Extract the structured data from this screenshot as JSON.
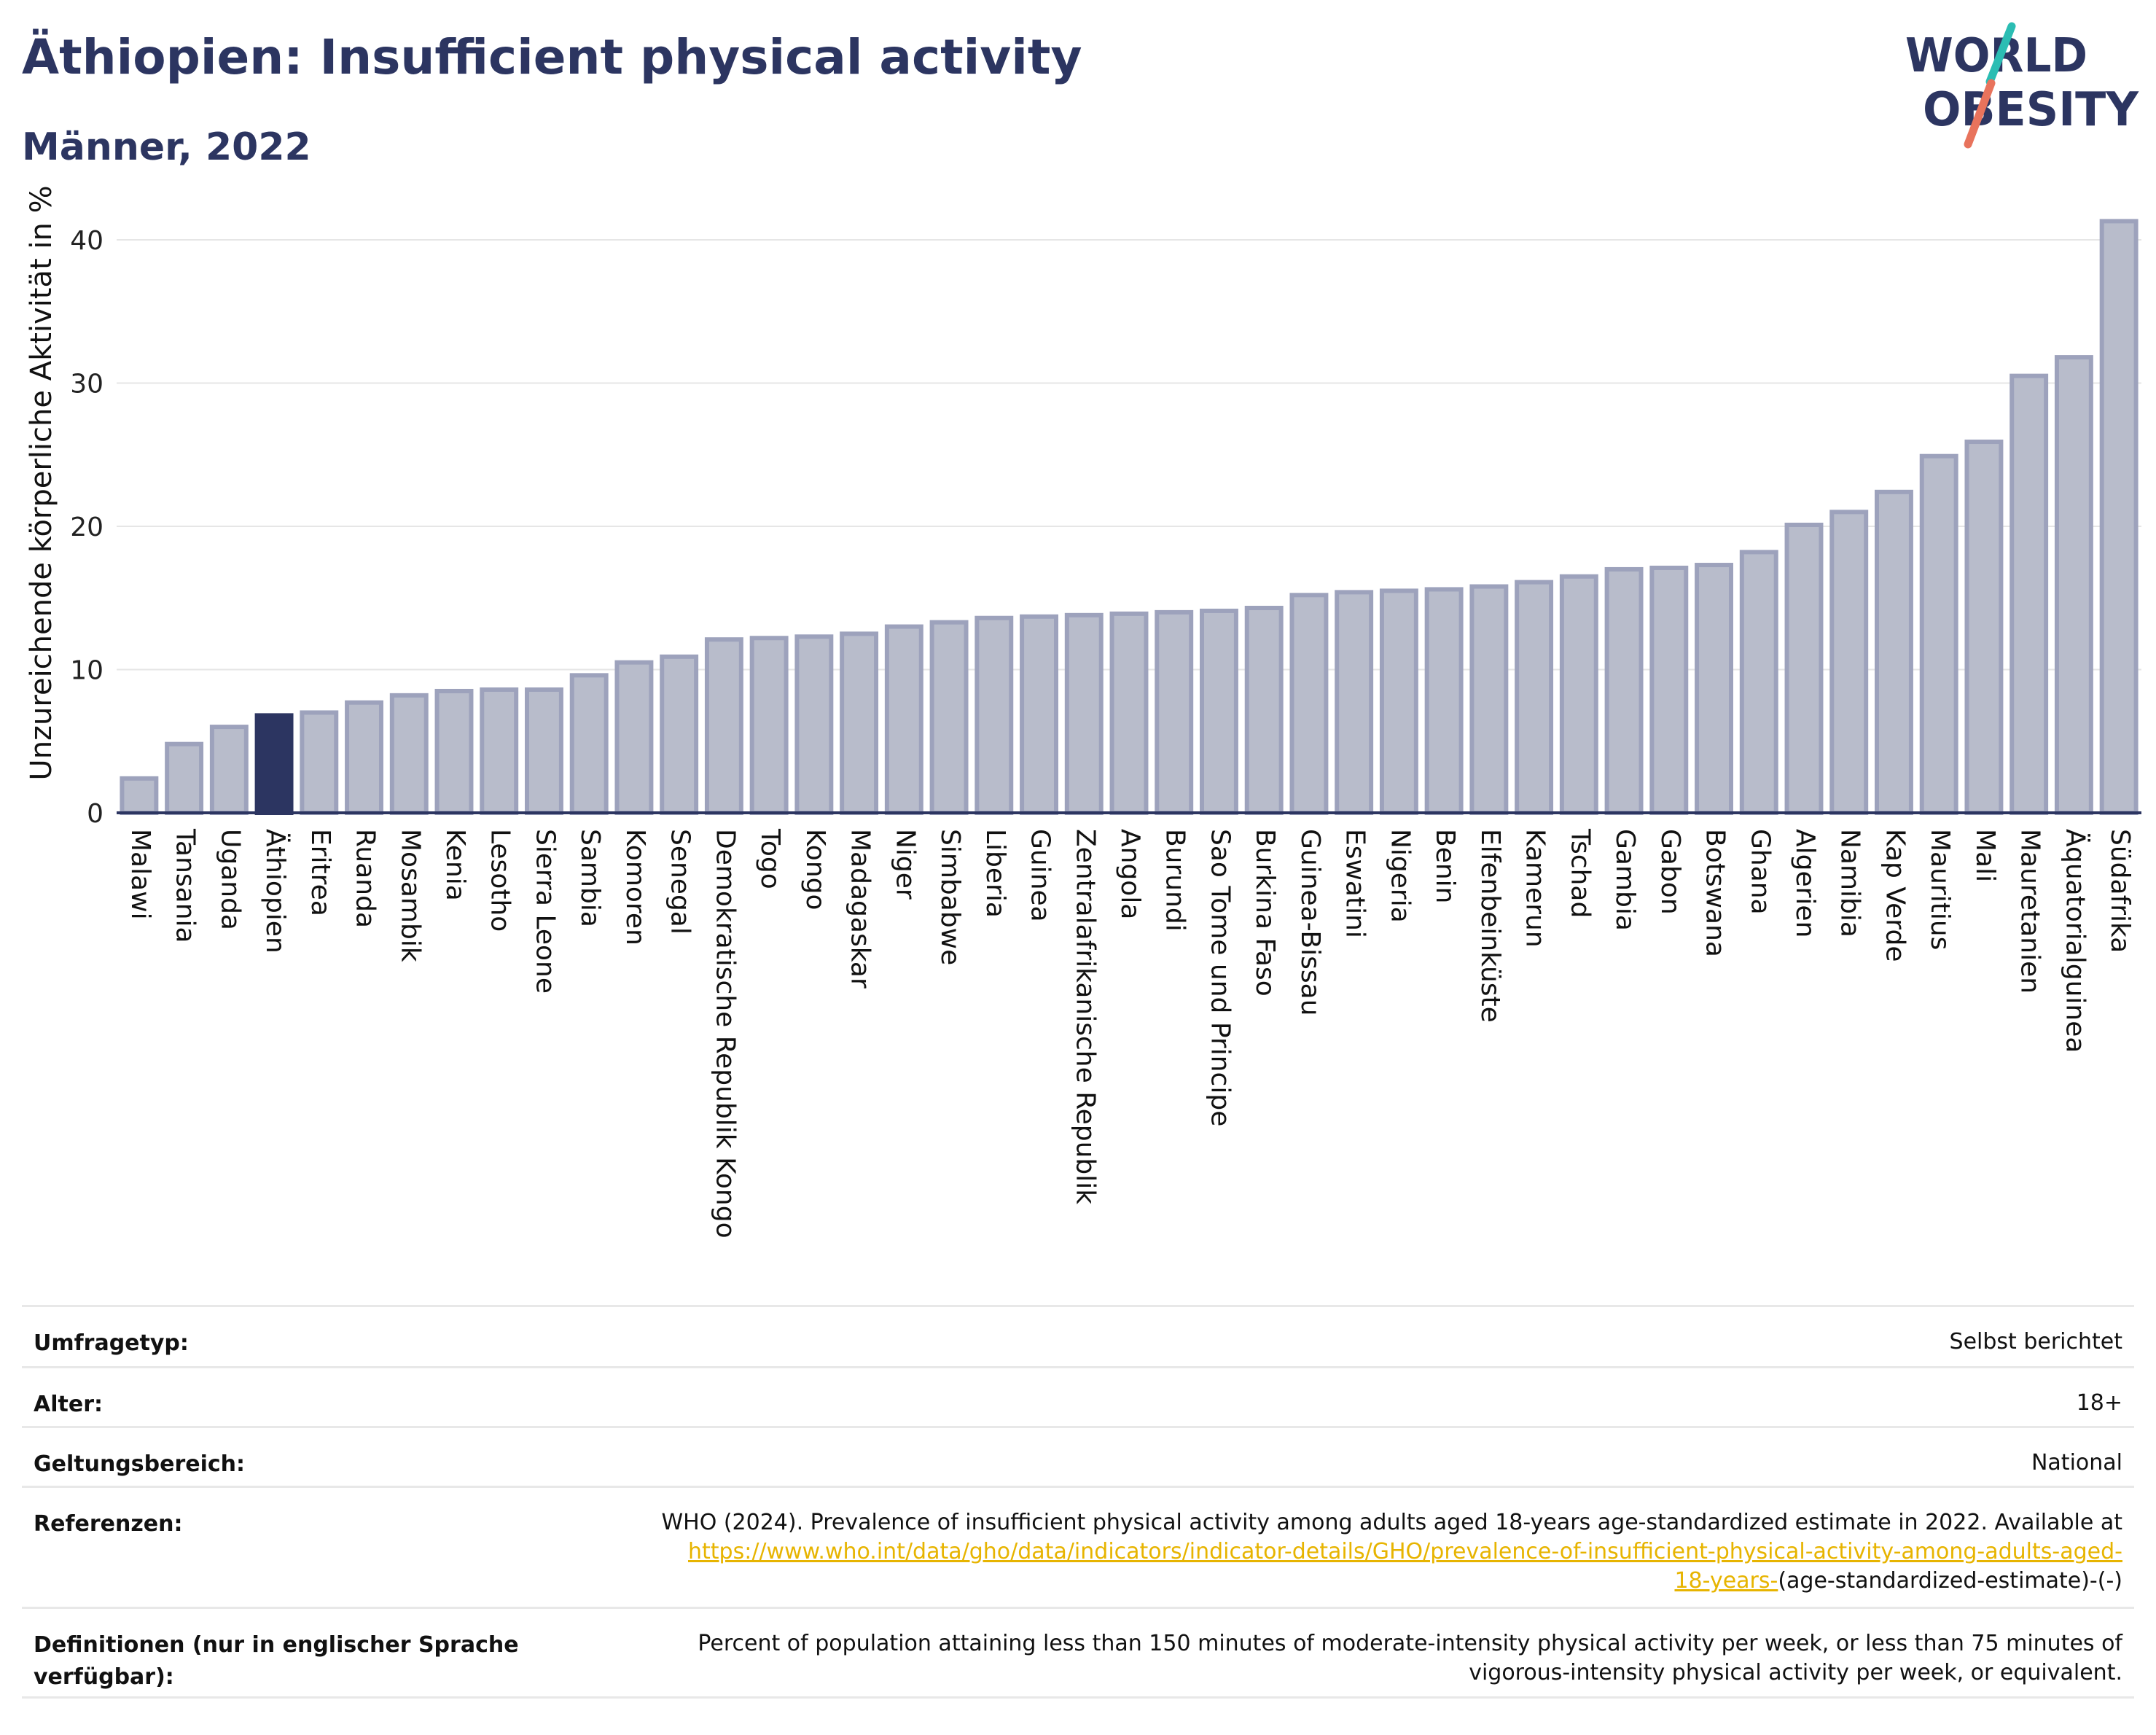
{
  "header": {
    "title": "Äthiopien: Insufficient physical activity",
    "subtitle": "Männer, 2022"
  },
  "logo": {
    "line1": "WORLD",
    "line2": "OBESITY",
    "colors": {
      "text": "#2c3561",
      "slash_red": "#e8735c",
      "slash_teal": "#2bbdb3"
    }
  },
  "colors": {
    "bar_fill": "#b8bccb",
    "bar_stroke": "#9da2bc",
    "highlight_fill": "#2c3561",
    "grid": "#e6e6e6",
    "axis": "#2c3561"
  },
  "chart_data": {
    "type": "bar",
    "title": "Äthiopien: Insufficient physical activity",
    "subtitle": "Männer, 2022",
    "xlabel": "",
    "ylabel": "Unzureichende körperliche Aktivität in %",
    "ylim": [
      0,
      43
    ],
    "yticks": [
      0,
      10,
      20,
      30,
      40
    ],
    "grid": true,
    "highlight": "Äthiopien",
    "categories": [
      "Malawi",
      "Tansania",
      "Uganda",
      "Äthiopien",
      "Eritrea",
      "Ruanda",
      "Mosambik",
      "Kenia",
      "Lesotho",
      "Sierra Leone",
      "Sambia",
      "Komoren",
      "Senegal",
      "Demokratische Republik Kongo",
      "Togo",
      "Kongo",
      "Madagaskar",
      "Niger",
      "Simbabwe",
      "Liberia",
      "Guinea",
      "Zentralafrikanische Republik",
      "Angola",
      "Burundi",
      "Sao Tome und Principe",
      "Burkina Faso",
      "Guinea-Bissau",
      "Eswatini",
      "Nigeria",
      "Benin",
      "Elfenbeinküste",
      "Kamerun",
      "Tschad",
      "Gambia",
      "Gabon",
      "Botswana",
      "Ghana",
      "Algerien",
      "Namibia",
      "Kap Verde",
      "Mauritius",
      "Mali",
      "Mauretanien",
      "Äquatorialguinea",
      "Südafrika"
    ],
    "values": [
      2.4,
      4.8,
      6.0,
      6.8,
      7.0,
      7.7,
      8.2,
      8.5,
      8.6,
      8.6,
      9.6,
      10.5,
      10.9,
      12.1,
      12.2,
      12.3,
      12.5,
      13.0,
      13.3,
      13.6,
      13.7,
      13.8,
      13.9,
      14.0,
      14.1,
      14.3,
      15.2,
      15.4,
      15.5,
      15.6,
      15.8,
      16.1,
      16.5,
      17.0,
      17.1,
      17.3,
      18.2,
      20.1,
      21.0,
      22.4,
      24.9,
      25.9,
      30.5,
      31.8,
      41.3
    ]
  },
  "info": {
    "rows": [
      {
        "label": "Umfragetyp:",
        "value": "Selbst berichtet"
      },
      {
        "label": "Alter:",
        "value": "18+"
      },
      {
        "label": "Geltungsbereich:",
        "value": "National"
      }
    ],
    "references": {
      "label": "Referenzen:",
      "text": "WHO (2024). Prevalence of insufficient physical activity among adults aged 18-years age-standardized estimate in 2022. Available at",
      "link_line1": "https://www.who.int/data/gho/data/indicators/indicator-details/GHO/prevalence-of-insufficient-physical-activity-among-adults-aged-",
      "link_line2": "18-years-",
      "suffix": "(age-standardized-estimate)-(-)"
    },
    "definitions": {
      "label_line1": "Definitionen (nur in englischer Sprache",
      "label_line2": "verfügbar):",
      "text_line1": "Percent of population attaining less than 150 minutes of moderate-intensity physical activity per week, or less than 75 minutes of",
      "text_line2": "vigorous-intensity physical activity per week, or equivalent."
    }
  }
}
